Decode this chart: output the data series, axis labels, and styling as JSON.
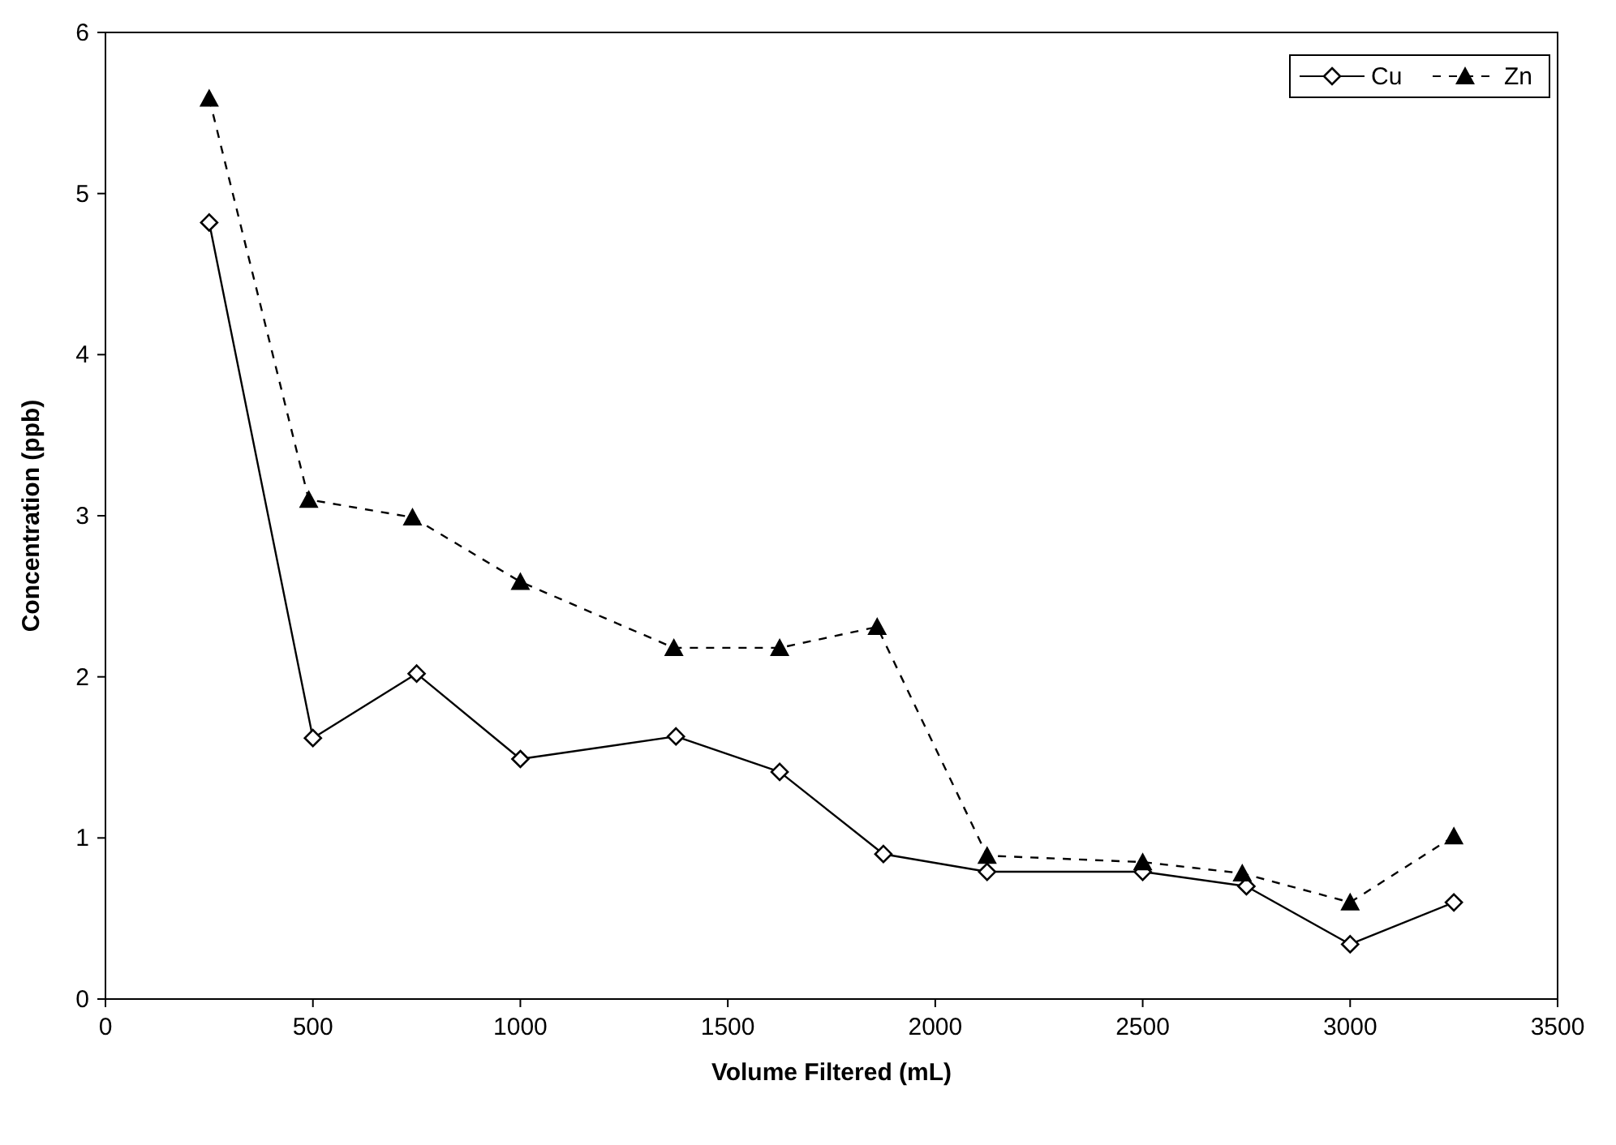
{
  "chart_data": {
    "type": "line",
    "xlabel": "Volume Filtered (mL)",
    "ylabel": "Concentration (ppb)",
    "xlim": [
      0,
      3500
    ],
    "xticks": [
      0,
      500,
      1000,
      1500,
      2000,
      2500,
      3000,
      3500
    ],
    "ylim": [
      0,
      6
    ],
    "yticks": [
      0,
      1,
      2,
      3,
      4,
      5,
      6
    ],
    "grid": false,
    "legend": "top right",
    "series": [
      {
        "name": "Cu",
        "color": "#000000",
        "marker": "diamond",
        "line_style": "solid",
        "x": [
          250,
          500,
          750,
          1000,
          1375,
          1625,
          1875,
          2125,
          2500,
          2750,
          3000,
          3250
        ],
        "values": [
          4.82,
          1.62,
          2.02,
          1.49,
          1.63,
          1.41,
          0.9,
          0.79,
          0.79,
          0.7,
          0.34,
          0.6
        ]
      },
      {
        "name": "Zn",
        "color": "#000000",
        "marker": "triangle",
        "line_style": "dashed",
        "x": [
          250,
          490,
          740,
          1000,
          1370,
          1625,
          1860,
          2125,
          2500,
          2740,
          3000,
          3250
        ],
        "values": [
          5.59,
          3.1,
          2.99,
          2.59,
          2.18,
          2.18,
          2.31,
          0.89,
          0.85,
          0.78,
          0.6,
          1.01
        ]
      }
    ]
  }
}
